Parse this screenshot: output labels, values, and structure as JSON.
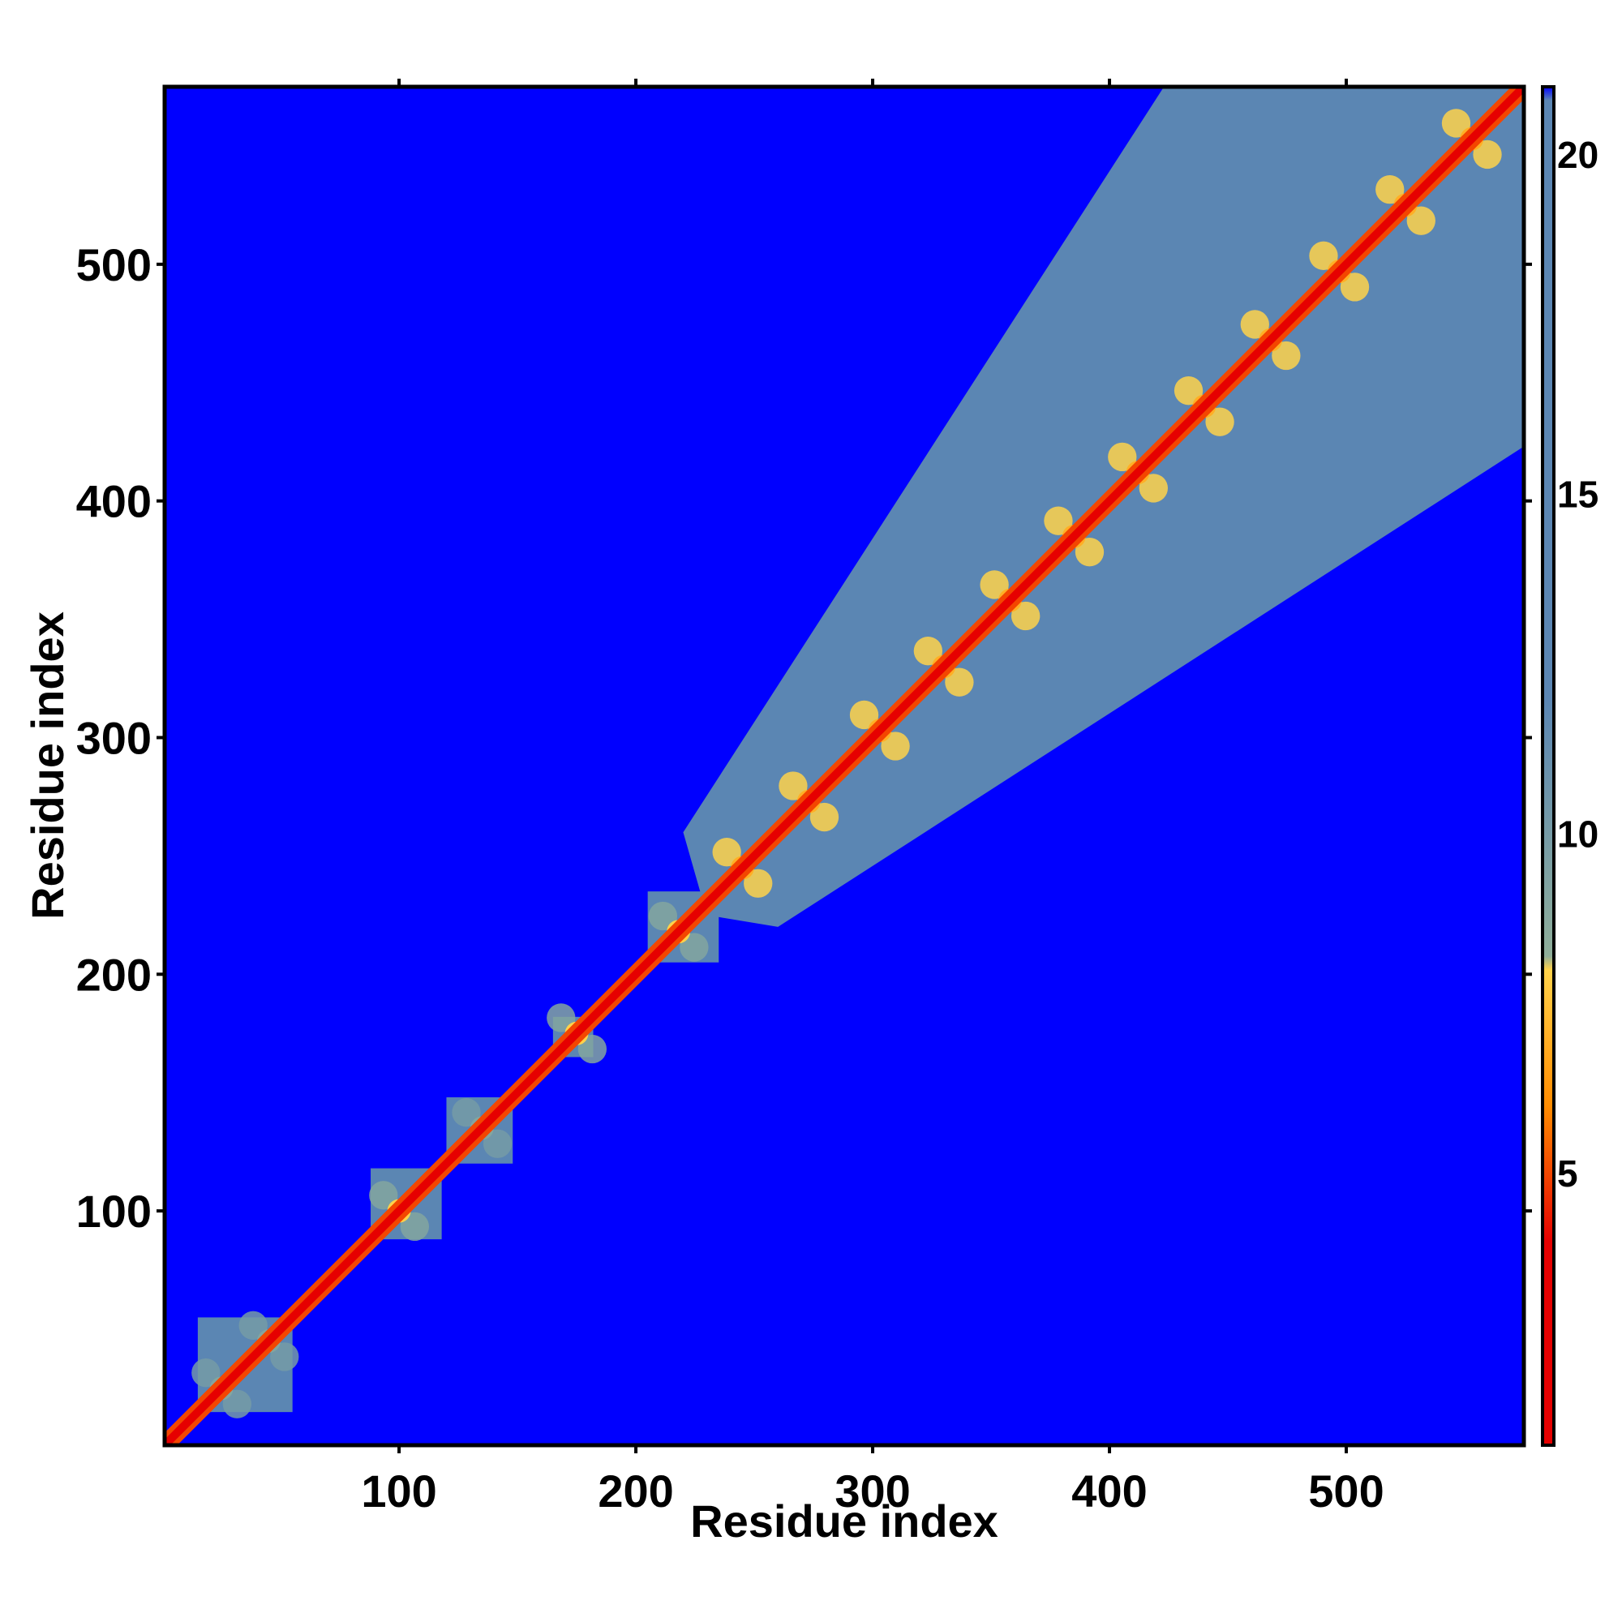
{
  "chart_data": {
    "type": "heatmap",
    "title": "",
    "xlabel": "Residue index",
    "ylabel": "Residue index",
    "xlim": [
      1,
      575
    ],
    "ylim": [
      1,
      575
    ],
    "x_ticks": [
      100,
      200,
      300,
      400,
      500
    ],
    "y_ticks": [
      100,
      200,
      300,
      400,
      500
    ],
    "colorbar": {
      "range": [
        1,
        21
      ],
      "ticks": [
        5,
        10,
        15,
        20
      ],
      "colors": {
        "low": "#e60000",
        "mid_low": "#ff8c00",
        "mid": "#ffd24a",
        "mid_high": "#8fae9a",
        "high_plateau": "#5b86b3",
        "background": "#0000ff"
      }
    },
    "background_value": 21,
    "diagonal_value": 1,
    "domains": [
      {
        "start": 15,
        "end": 55,
        "level": 17
      },
      {
        "start": 88,
        "end": 118,
        "level": 16
      },
      {
        "start": 120,
        "end": 148,
        "level": 16
      },
      {
        "start": 165,
        "end": 182,
        "level": 14
      },
      {
        "start": 205,
        "end": 235,
        "level": 16
      },
      {
        "start": 230,
        "end": 575,
        "level": 17
      }
    ],
    "contact_clusters": [
      {
        "residue": 25,
        "level": 9
      },
      {
        "residue": 45,
        "level": 9
      },
      {
        "residue": 100,
        "level": 8
      },
      {
        "residue": 135,
        "level": 9
      },
      {
        "residue": 175,
        "level": 8
      },
      {
        "residue": 218,
        "level": 8
      },
      {
        "residue": 245,
        "level": 7
      },
      {
        "residue": 273,
        "level": 7
      },
      {
        "residue": 303,
        "level": 7
      },
      {
        "residue": 330,
        "level": 7
      },
      {
        "residue": 358,
        "level": 7
      },
      {
        "residue": 385,
        "level": 7
      },
      {
        "residue": 412,
        "level": 7
      },
      {
        "residue": 440,
        "level": 7
      },
      {
        "residue": 468,
        "level": 7
      },
      {
        "residue": 497,
        "level": 7
      },
      {
        "residue": 525,
        "level": 7
      },
      {
        "residue": 553,
        "level": 7
      }
    ]
  }
}
